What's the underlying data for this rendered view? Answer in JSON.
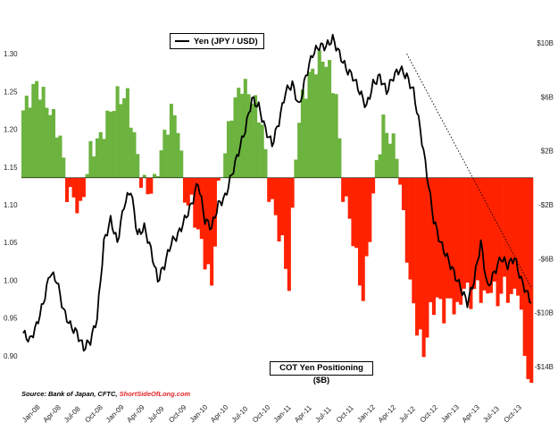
{
  "chart_data": {
    "type": "bar+line",
    "title": "",
    "line_series": {
      "name": "Yen (JPY / USD)",
      "ylim": [
        0.85,
        1.35
      ],
      "yticks": [
        "0.90",
        "0.95",
        "1.00",
        "1.05",
        "1.10",
        "1.15",
        "1.20",
        "1.25",
        "1.30"
      ],
      "points": [
        [
          0,
          0.93
        ],
        [
          2,
          0.92
        ],
        [
          4,
          0.94
        ],
        [
          6,
          0.97
        ],
        [
          8,
          1.01
        ],
        [
          10,
          1.0
        ],
        [
          12,
          0.96
        ],
        [
          14,
          0.94
        ],
        [
          16,
          0.93
        ],
        [
          18,
          0.91
        ],
        [
          20,
          0.92
        ],
        [
          22,
          0.95
        ],
        [
          24,
          1.05
        ],
        [
          26,
          1.08
        ],
        [
          28,
          1.05
        ],
        [
          30,
          1.1
        ],
        [
          32,
          1.12
        ],
        [
          34,
          1.06
        ],
        [
          36,
          1.07
        ],
        [
          38,
          1.04
        ],
        [
          40,
          1.0
        ],
        [
          42,
          1.02
        ],
        [
          44,
          1.05
        ],
        [
          46,
          1.06
        ],
        [
          48,
          1.08
        ],
        [
          50,
          1.1
        ],
        [
          52,
          1.13
        ],
        [
          54,
          1.08
        ],
        [
          56,
          1.07
        ],
        [
          58,
          1.1
        ],
        [
          60,
          1.11
        ],
        [
          62,
          1.14
        ],
        [
          64,
          1.17
        ],
        [
          66,
          1.2
        ],
        [
          68,
          1.24
        ],
        [
          70,
          1.23
        ],
        [
          72,
          1.2
        ],
        [
          74,
          1.18
        ],
        [
          76,
          1.21
        ],
        [
          78,
          1.25
        ],
        [
          80,
          1.26
        ],
        [
          82,
          1.23
        ],
        [
          84,
          1.27
        ],
        [
          86,
          1.3
        ],
        [
          88,
          1.31
        ],
        [
          90,
          1.31
        ],
        [
          92,
          1.32
        ],
        [
          94,
          1.3
        ],
        [
          96,
          1.28
        ],
        [
          98,
          1.27
        ],
        [
          100,
          1.25
        ],
        [
          102,
          1.23
        ],
        [
          104,
          1.26
        ],
        [
          106,
          1.27
        ],
        [
          108,
          1.25
        ],
        [
          110,
          1.27
        ],
        [
          112,
          1.28
        ],
        [
          114,
          1.27
        ],
        [
          116,
          1.25
        ],
        [
          118,
          1.2
        ],
        [
          120,
          1.14
        ],
        [
          122,
          1.08
        ],
        [
          124,
          1.05
        ],
        [
          126,
          1.03
        ],
        [
          128,
          1.01
        ],
        [
          130,
          0.99
        ],
        [
          132,
          0.97
        ],
        [
          134,
          1.0
        ],
        [
          136,
          1.05
        ],
        [
          138,
          0.99
        ],
        [
          140,
          1.01
        ],
        [
          142,
          1.03
        ],
        [
          144,
          1.02
        ],
        [
          146,
          1.03
        ],
        [
          148,
          1.0
        ],
        [
          150,
          0.98
        ],
        [
          151,
          0.97
        ]
      ]
    },
    "bar_series": {
      "name": "COT Yen Positioning ($B)",
      "ylim": [
        -16,
        12
      ],
      "yticks": [
        {
          "v": 10,
          "label": "$10B"
        },
        {
          "v": 6,
          "label": "$6B"
        },
        {
          "v": 2,
          "label": "$2B"
        },
        {
          "v": -2,
          "label": "-$2B"
        },
        {
          "v": -6,
          "label": "-$6B"
        },
        {
          "v": -10,
          "label": "-$10B"
        },
        {
          "v": -14,
          "label": "-$14B"
        }
      ],
      "positive_color": "#6cb33f",
      "negative_color": "#ff2200",
      "anchors": [
        [
          0,
          5
        ],
        [
          4,
          7
        ],
        [
          8,
          5
        ],
        [
          11,
          3
        ],
        [
          13,
          -1
        ],
        [
          15,
          -1.5
        ],
        [
          17,
          -2.5
        ],
        [
          20,
          2
        ],
        [
          23,
          3
        ],
        [
          26,
          5
        ],
        [
          28,
          6
        ],
        [
          31,
          6
        ],
        [
          33,
          3
        ],
        [
          35,
          0
        ],
        [
          37,
          -1
        ],
        [
          39,
          -0.5
        ],
        [
          41,
          2
        ],
        [
          44,
          5
        ],
        [
          46,
          4
        ],
        [
          48,
          -1.5
        ],
        [
          50,
          -2
        ],
        [
          52,
          -4
        ],
        [
          54,
          -6
        ],
        [
          56,
          -8
        ],
        [
          58,
          -1
        ],
        [
          60,
          2
        ],
        [
          62,
          5
        ],
        [
          65,
          7
        ],
        [
          68,
          6
        ],
        [
          71,
          4
        ],
        [
          73,
          -1
        ],
        [
          75,
          -3
        ],
        [
          77,
          -5
        ],
        [
          79,
          -8
        ],
        [
          81,
          2
        ],
        [
          83,
          6
        ],
        [
          86,
          8
        ],
        [
          89,
          9
        ],
        [
          91,
          8
        ],
        [
          93,
          6
        ],
        [
          95,
          -1
        ],
        [
          97,
          -3
        ],
        [
          99,
          -6
        ],
        [
          101,
          -9
        ],
        [
          103,
          -4
        ],
        [
          105,
          1
        ],
        [
          107,
          4
        ],
        [
          109,
          3
        ],
        [
          111,
          2
        ],
        [
          113,
          -3
        ],
        [
          115,
          -8
        ],
        [
          117,
          -11
        ],
        [
          119,
          -13
        ],
        [
          121,
          -10
        ],
        [
          123,
          -9
        ],
        [
          125,
          -10
        ],
        [
          127,
          -9
        ],
        [
          129,
          -10
        ],
        [
          131,
          -8
        ],
        [
          133,
          -9
        ],
        [
          135,
          -8
        ],
        [
          137,
          -9
        ],
        [
          139,
          -8
        ],
        [
          141,
          -9
        ],
        [
          143,
          -8
        ],
        [
          145,
          -9
        ],
        [
          147,
          -8
        ],
        [
          149,
          -13
        ],
        [
          151,
          -16
        ]
      ],
      "count": 152
    },
    "x_tick_labels": [
      "Jan-08",
      "Apr-08",
      "Jul-08",
      "Oct-08",
      "Jan-09",
      "Apr-09",
      "Jul-09",
      "Oct-09",
      "Jan-10",
      "Apr-10",
      "Jul-10",
      "Oct-10",
      "Jan-11",
      "Apr-11",
      "Jul-11",
      "Oct-11",
      "Jan-12",
      "Apr-12",
      "Jul-12",
      "Oct-12",
      "Jan-13",
      "Apr-13",
      "Jul-13",
      "Oct-13"
    ],
    "trendline": {
      "style": "dotted",
      "from": [
        114,
        1.3
      ],
      "to": [
        151,
        0.99
      ]
    }
  },
  "legend": {
    "yen_label": "Yen (JPY / USD)"
  },
  "cot_label": "COT Yen Positioning ($B)",
  "source": {
    "prefix": "Source: Bank of Japan, CFTC, ",
    "brand": "ShortSideOfLong.com"
  },
  "colors": {
    "line": "#000000",
    "positive": "#6cb33f",
    "negative": "#ff2200"
  }
}
